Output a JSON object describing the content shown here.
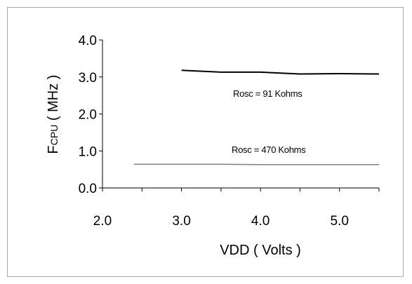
{
  "chart_data": {
    "type": "line",
    "xlabel": "VDD ( Volts )",
    "ylabel_main": "F",
    "ylabel_sub": "CPU",
    "ylabel_unit": " ( MHz )",
    "xlim": [
      2.0,
      5.5
    ],
    "ylim": [
      0.0,
      4.0
    ],
    "x_ticks": [
      "2.0",
      "3.0",
      "4.0",
      "5.0"
    ],
    "y_ticks": [
      "0.0",
      "1.0",
      "2.0",
      "3.0",
      "4.0"
    ],
    "grid": false,
    "series": [
      {
        "label": "Rosc = 91 Kohms",
        "color": "#000000",
        "x": [
          3.0,
          3.5,
          4.0,
          4.5,
          5.0,
          5.5
        ],
        "y": [
          3.18,
          3.13,
          3.13,
          3.08,
          3.09,
          3.08
        ]
      },
      {
        "label": "Rosc = 470 Kohms",
        "color": "#808080",
        "x": [
          2.4,
          3.0,
          3.5,
          4.0,
          4.5,
          5.0,
          5.5
        ],
        "y": [
          0.64,
          0.64,
          0.64,
          0.63,
          0.63,
          0.63,
          0.63
        ]
      }
    ]
  }
}
